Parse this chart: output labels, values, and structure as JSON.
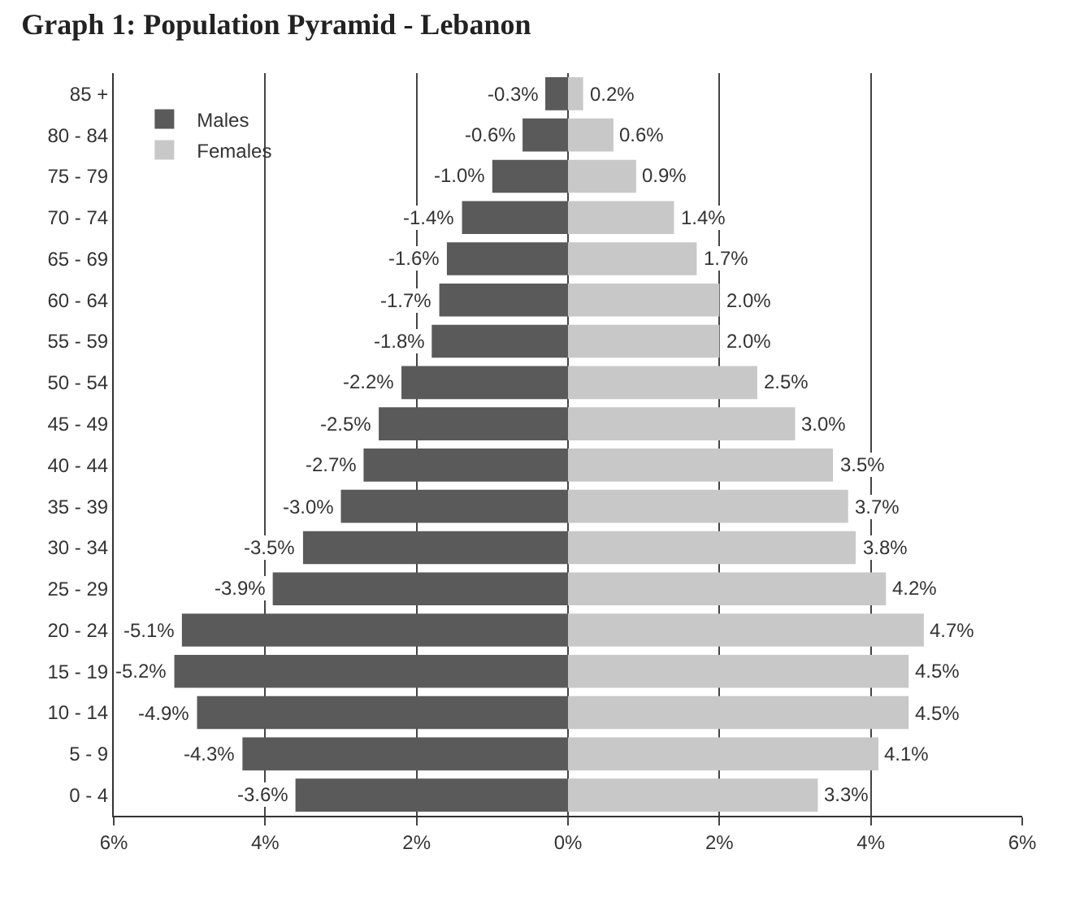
{
  "chart_data": {
    "type": "bar",
    "orientation": "horizontal",
    "title": "Graph 1: Population Pyramid - Lebanon",
    "categories": [
      "85 +",
      "80 - 84",
      "75 - 79",
      "70 - 74",
      "65 - 69",
      "60 - 64",
      "55 - 59",
      "50 - 54",
      "45 - 49",
      "40 - 44",
      "35 - 39",
      "30 - 34",
      "25 - 29",
      "20 - 24",
      "15 - 19",
      "10 - 14",
      "5 - 9",
      "0 - 4"
    ],
    "series": [
      {
        "name": "Males",
        "color": "#5a5a5a",
        "values": [
          -0.3,
          -0.6,
          -1.0,
          -1.4,
          -1.6,
          -1.7,
          -1.8,
          -2.2,
          -2.5,
          -2.7,
          -3.0,
          -3.5,
          -3.9,
          -5.1,
          -5.2,
          -4.9,
          -4.3,
          -3.6
        ],
        "value_labels": [
          "-0.3%",
          "-0.6%",
          "-1.0%",
          "-1.4%",
          "-1.6%",
          "-1.7%",
          "-1.8%",
          "-2.2%",
          "-2.5%",
          "-2.7%",
          "-3.0%",
          "-3.5%",
          "-3.9%",
          "-5.1%",
          "-5.2%",
          "-4.9%",
          "-4.3%",
          "-3.6%"
        ]
      },
      {
        "name": "Females",
        "color": "#c8c8c8",
        "values": [
          0.2,
          0.6,
          0.9,
          1.4,
          1.7,
          2.0,
          2.0,
          2.5,
          3.0,
          3.5,
          3.7,
          3.8,
          4.2,
          4.7,
          4.5,
          4.5,
          4.1,
          3.3
        ],
        "value_labels": [
          "0.2%",
          "0.6%",
          "0.9%",
          "1.4%",
          "1.7%",
          "2.0%",
          "2.0%",
          "2.5%",
          "3.0%",
          "3.5%",
          "3.7%",
          "3.8%",
          "4.2%",
          "4.7%",
          "4.5%",
          "4.5%",
          "4.1%",
          "3.3%"
        ]
      }
    ],
    "stacked": true,
    "xlim": [
      -6,
      6
    ],
    "xticks": [
      {
        "value": -6,
        "label": "6%"
      },
      {
        "value": -4,
        "label": "4%"
      },
      {
        "value": -2,
        "label": "2%"
      },
      {
        "value": 0,
        "label": "0%"
      },
      {
        "value": 2,
        "label": "2%"
      },
      {
        "value": 4,
        "label": "4%"
      },
      {
        "value": 6,
        "label": "6%"
      }
    ],
    "grid": "x",
    "legend": "top left"
  }
}
